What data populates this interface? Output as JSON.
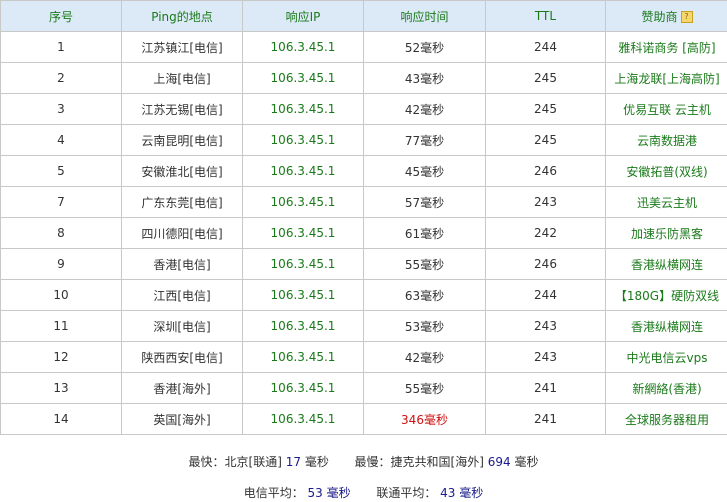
{
  "table": {
    "headers": [
      "序号",
      "Ping的地点",
      "响应IP",
      "响应时间",
      "TTL",
      "赞助商"
    ],
    "help_icon": "question-icon",
    "rows": [
      {
        "no": "1",
        "location": "江苏镇江[电信]",
        "ip": "106.3.45.1",
        "time": "52毫秒",
        "ttl": "244",
        "sponsor": "雅科诺商务 [高防]"
      },
      {
        "no": "2",
        "location": "上海[电信]",
        "ip": "106.3.45.1",
        "time": "43毫秒",
        "ttl": "245",
        "sponsor": "上海龙联[上海高防]"
      },
      {
        "no": "3",
        "location": "江苏无锡[电信]",
        "ip": "106.3.45.1",
        "time": "42毫秒",
        "ttl": "245",
        "sponsor": "优易互联 云主机"
      },
      {
        "no": "4",
        "location": "云南昆明[电信]",
        "ip": "106.3.45.1",
        "time": "77毫秒",
        "ttl": "245",
        "sponsor": "云南数据港"
      },
      {
        "no": "5",
        "location": "安徽淮北[电信]",
        "ip": "106.3.45.1",
        "time": "45毫秒",
        "ttl": "246",
        "sponsor": "安徽拓普(双线)"
      },
      {
        "no": "7",
        "location": "广东东莞[电信]",
        "ip": "106.3.45.1",
        "time": "57毫秒",
        "ttl": "243",
        "sponsor": "迅美云主机"
      },
      {
        "no": "8",
        "location": "四川德阳[电信]",
        "ip": "106.3.45.1",
        "time": "61毫秒",
        "ttl": "242",
        "sponsor": "加速乐防黑客"
      },
      {
        "no": "9",
        "location": "香港[电信]",
        "ip": "106.3.45.1",
        "time": "55毫秒",
        "ttl": "246",
        "sponsor": "香港纵横网连"
      },
      {
        "no": "10",
        "location": "江西[电信]",
        "ip": "106.3.45.1",
        "time": "63毫秒",
        "ttl": "244",
        "sponsor": "【180G】硬防双线"
      },
      {
        "no": "11",
        "location": "深圳[电信]",
        "ip": "106.3.45.1",
        "time": "53毫秒",
        "ttl": "243",
        "sponsor": "香港纵横网连"
      },
      {
        "no": "12",
        "location": "陕西西安[电信]",
        "ip": "106.3.45.1",
        "time": "42毫秒",
        "ttl": "243",
        "sponsor": "中光电信云vps"
      },
      {
        "no": "13",
        "location": "香港[海外]",
        "ip": "106.3.45.1",
        "time": "55毫秒",
        "ttl": "241",
        "sponsor": "新網絡(香港)"
      },
      {
        "no": "14",
        "location": "英国[海外]",
        "ip": "106.3.45.1",
        "time": "346毫秒",
        "ttl": "241",
        "sponsor": "全球服务器租用",
        "slow": true
      }
    ]
  },
  "summary": {
    "fastest_label": "最快：北京[联通]",
    "fastest_value": "17",
    "slowest_label": "最慢：捷克共和国[海外]",
    "slowest_value": "694",
    "unit": "毫秒",
    "telecom_avg_label": "电信平均：",
    "telecom_avg_value": "53",
    "unicom_avg_label": "联通平均：",
    "unicom_avg_value": "43"
  },
  "colors": {
    "header_bg": "#dce9f7",
    "link_green": "#1a7a1a",
    "slow_red": "#d01010",
    "value_blue": "#1a1a8a"
  }
}
